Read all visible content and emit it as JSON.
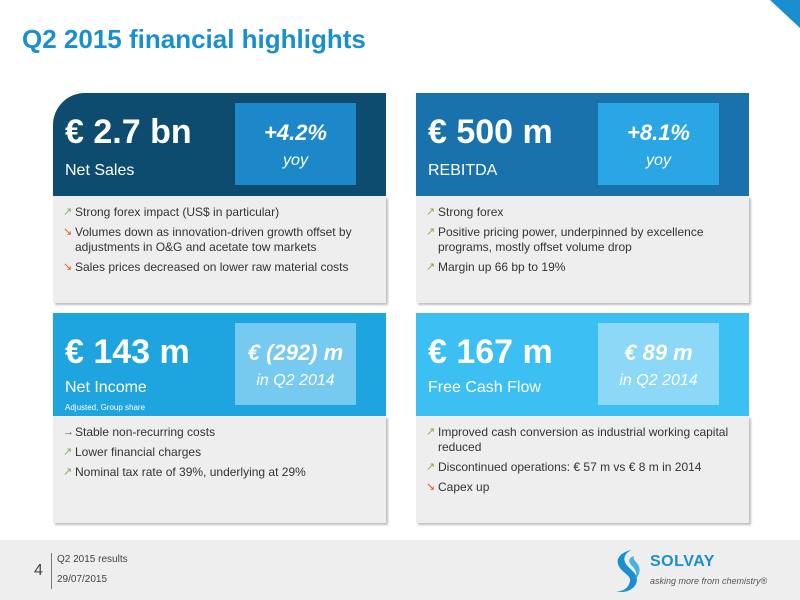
{
  "title": "Q2 2015 financial highlights",
  "colors": {
    "title": "#1a8fd0",
    "arrow_up": "#7cb342",
    "arrow_down": "#e85a1c"
  },
  "cards": [
    {
      "value": "€ 2.7 bn",
      "metric": "Net Sales",
      "change": "+4.2%",
      "change_label": "yoy",
      "bullets": [
        {
          "icon": "arrow-up-right",
          "text": "Strong forex impact (US$ in particular)"
        },
        {
          "icon": "arrow-down-right",
          "text": "Volumes down as innovation-driven growth offset by adjustments in O&G and acetate tow markets"
        },
        {
          "icon": "arrow-down-right",
          "text": "Sales prices decreased on lower raw material costs"
        }
      ]
    },
    {
      "value": "€ 500 m",
      "metric": "REBITDA",
      "change": "+8.1%",
      "change_label": "yoy",
      "bullets": [
        {
          "icon": "arrow-up-right",
          "text": "Strong forex"
        },
        {
          "icon": "arrow-up-right",
          "text": "Positive pricing power, underpinned by excellence programs, mostly offset volume drop"
        },
        {
          "icon": "arrow-up-right",
          "text": "Margin up 66 bp to 19%"
        }
      ]
    },
    {
      "value": "€ 143 m",
      "metric": "Net Income",
      "submetric": "Adjusted, Group share",
      "change": "€ (292) m",
      "change_label": "in Q2 2014",
      "bullets": [
        {
          "icon": "arrow-right",
          "text": "Stable non-recurring costs"
        },
        {
          "icon": "arrow-up-right",
          "text": "Lower financial charges"
        },
        {
          "icon": "arrow-up-right",
          "text": "Nominal tax rate of 39%, underlying at 29%"
        }
      ]
    },
    {
      "value": "€ 167 m",
      "metric": "Free Cash Flow",
      "change": "€ 89 m",
      "change_label": "in Q2 2014",
      "bullets": [
        {
          "icon": "arrow-up-right",
          "text": "Improved cash conversion as industrial working capital reduced"
        },
        {
          "icon": "arrow-up-right",
          "text": "Discontinued operations: € 57 m vs € 8 m in 2014"
        },
        {
          "icon": "arrow-down-right",
          "text": "Capex up"
        }
      ]
    }
  ],
  "footer": {
    "page_number": "4",
    "line1": "Q2 2015 results",
    "line2": "29/07/2015",
    "logo_name": "SOLVAY",
    "logo_tagline": "asking more from chemistry®"
  }
}
